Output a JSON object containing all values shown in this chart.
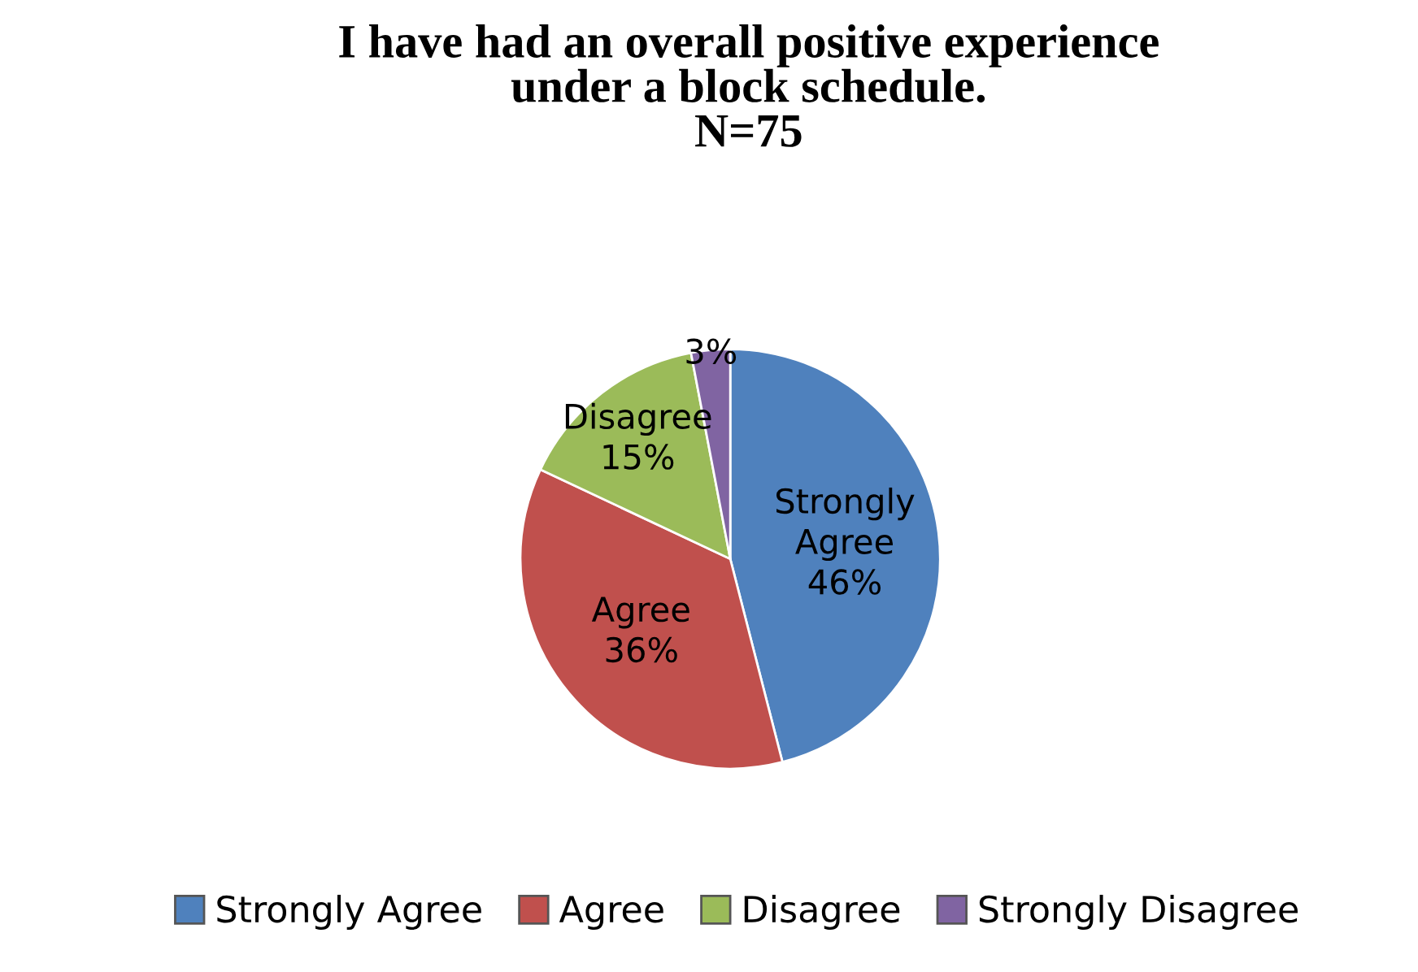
{
  "chart_data": {
    "type": "pie",
    "title": "I have had an overall positive experience\nunder a block schedule.\nN=75",
    "categories": [
      "Strongly Agree",
      "Agree",
      "Disagree",
      "Strongly Disagree"
    ],
    "values": [
      46,
      36,
      15,
      3
    ],
    "colors": [
      "#4f81bd",
      "#c0504d",
      "#9bbb59",
      "#8064a2"
    ],
    "value_labels": [
      "Strongly\nAgree\n46%",
      "Agree\n36%",
      "Disagree\n15%",
      "3%"
    ],
    "legend": "bottom"
  }
}
